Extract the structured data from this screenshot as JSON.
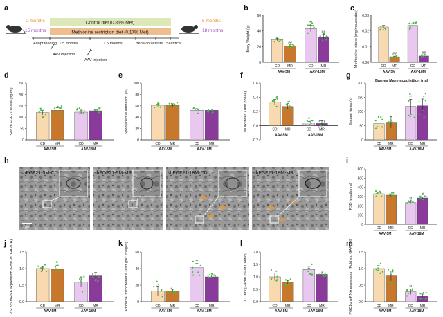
{
  "colors": {
    "cd5": "#f8d9b0",
    "mr5": "#c8782c",
    "cd18": "#e8c8ef",
    "mr18": "#8a3a9a",
    "dots": "#3fbf3f",
    "control_diet": "#dde8b8",
    "met_diet": "#f0be8e",
    "age5": "#ef8a2a",
    "age18": "#a04fc0"
  },
  "panel_letters": [
    "a",
    "b",
    "c",
    "d",
    "e",
    "f",
    "g",
    "h",
    "i",
    "j",
    "k",
    "l",
    "m"
  ],
  "schematic": {
    "age_left_top": "2 months",
    "age_left_bottom": "15 months",
    "control_bar": "Control diet (0.86% Met)",
    "met_bar": "Methionine restriction diet (0.17% Met)",
    "age_right_top": "5 months",
    "age_right_bottom": "18 months",
    "step1": "Adapt feeding",
    "step2": "1.5 months",
    "step3": "AAV injection",
    "step4": "1.5 months",
    "step5": "AAV injection",
    "step6": "Behavioral tests",
    "step7": "Sacrifice"
  },
  "micrographs": {
    "labels": [
      "shFGF21-5M-CD",
      "shFGF21-5M-MR",
      "shFGF21-18M-CD",
      "shFGF21-18M-MR"
    ],
    "scale_label": "1 μm"
  },
  "chart_data": [
    {
      "id": "b",
      "type": "bar",
      "ylabel": "Body Weight (g)",
      "ylim": [
        0,
        60
      ],
      "ticks": [
        "0",
        "20",
        "40",
        "60"
      ],
      "categories": [
        "CD",
        "MR",
        "CD",
        "MR"
      ],
      "groups": [
        "AAV-5M",
        "AAV-18M"
      ],
      "values": [
        29,
        21,
        43,
        32
      ],
      "errors": [
        1.5,
        1.2,
        4,
        3.5
      ],
      "annotations": [
        "",
        "##",
        "**",
        "##"
      ]
    },
    {
      "id": "c",
      "type": "bar",
      "ylabel": "Methionine intake (mg/mouse/day)",
      "ylim": [
        0,
        0.03
      ],
      "ticks": [
        "0.00",
        "0.01",
        "0.02",
        "0.03"
      ],
      "categories": [
        "CD",
        "MR",
        "CD",
        "MR"
      ],
      "groups": [
        "AAV-5M",
        "AAV-18M"
      ],
      "values": [
        0.0225,
        0.0035,
        0.0235,
        0.004
      ],
      "errors": [
        0.001,
        0.0004,
        0.0012,
        0.0005
      ],
      "annotations": [
        "",
        "##",
        "",
        "##"
      ]
    },
    {
      "id": "d",
      "type": "bar",
      "ylabel": "Serum FGF21 levels (pg/ml)",
      "ylim": [
        0,
        250
      ],
      "ticks": [
        "0",
        "50",
        "100",
        "150",
        "200",
        "250"
      ],
      "categories": [
        "CD",
        "MR",
        "CD",
        "MR"
      ],
      "groups": [
        "AAV-5M",
        "AAV-18M"
      ],
      "values": [
        120,
        130,
        122,
        128
      ],
      "errors": [
        10,
        12,
        9,
        8
      ],
      "annotations": [
        "",
        "",
        "",
        ""
      ]
    },
    {
      "id": "e",
      "type": "bar",
      "ylabel": "Spontaneous alteration (%)",
      "ylim": [
        0,
        100
      ],
      "ticks": [
        "0",
        "20",
        "40",
        "60",
        "80",
        "100"
      ],
      "categories": [
        "CD",
        "MR",
        "CD",
        "MR"
      ],
      "groups": [
        "AAV-5M",
        "AAV-18M"
      ],
      "values": [
        61,
        61,
        52,
        52
      ],
      "errors": [
        2,
        2.5,
        3,
        2.5
      ],
      "annotations": [
        "",
        "",
        "",
        ""
      ]
    },
    {
      "id": "f",
      "type": "bar",
      "ylabel": "NOR index (Test phase)",
      "ylim": [
        -0.2,
        0.6
      ],
      "ticks": [
        "-0.2",
        "0.0",
        "0.2",
        "0.4",
        "0.6"
      ],
      "categories": [
        "CD",
        "MR",
        "CD",
        "MR"
      ],
      "groups": [
        "AAV-5M",
        "AAV-18M"
      ],
      "values": [
        0.33,
        0.27,
        0.04,
        0.03
      ],
      "errors": [
        0.04,
        0.04,
        0.02,
        0.04
      ],
      "annotations": [
        "",
        "",
        "**",
        ""
      ]
    },
    {
      "id": "g",
      "type": "bar",
      "title": "Barnes Maze-acquisition trial",
      "ylabel": "Escape times (s)",
      "ylim": [
        0,
        200
      ],
      "ticks": [
        "0",
        "50",
        "100",
        "150",
        "200"
      ],
      "categories": [
        "CD",
        "MR",
        "CD",
        "MR"
      ],
      "groups": [
        "AAV-5M",
        "AAV-18M"
      ],
      "values": [
        57,
        62,
        118,
        120
      ],
      "errors": [
        12,
        20,
        25,
        24
      ],
      "annotations": [
        "",
        "",
        "**",
        ""
      ]
    },
    {
      "id": "i",
      "type": "bar",
      "ylabel": "PSD length(nm)",
      "ylim": [
        0,
        600
      ],
      "ticks": [
        "0",
        "100",
        "200",
        "300",
        "400",
        "500",
        "600"
      ],
      "categories": [
        "CD",
        "MR",
        "CD",
        "MR"
      ],
      "groups": [
        "AAV-5M",
        "AAV-18M"
      ],
      "values": [
        330,
        315,
        235,
        285
      ],
      "errors": [
        15,
        14,
        13,
        12
      ],
      "annotations": [
        "",
        "",
        "**",
        "#"
      ]
    },
    {
      "id": "j",
      "type": "bar",
      "ylabel": "PSD95 mRNA expression (Fold vs. GAPDH)",
      "ylim": [
        0,
        1.5
      ],
      "ticks": [
        "0.0",
        "0.5",
        "1.0",
        "1.5"
      ],
      "categories": [
        "CD",
        "MR",
        "CD",
        "MR"
      ],
      "groups": [
        "AAV-5M",
        "AAV-18M"
      ],
      "values": [
        1.0,
        0.98,
        0.6,
        0.78
      ],
      "errors": [
        0.06,
        0.12,
        0.15,
        0.1
      ],
      "annotations": [
        "",
        "",
        "",
        ""
      ]
    },
    {
      "id": "k",
      "type": "bar",
      "ylabel": "Abnormal mitochondria ratio (per images)",
      "ylim": [
        0,
        60
      ],
      "ticks": [
        "0",
        "20",
        "40",
        "60"
      ],
      "categories": [
        "CD",
        "MR",
        "CD",
        "MR"
      ],
      "groups": [
        "AAV-5M",
        "AAV-18M"
      ],
      "values": [
        13,
        13,
        41,
        30
      ],
      "errors": [
        6,
        2,
        5,
        2
      ],
      "annotations": [
        "",
        "",
        "**",
        ""
      ]
    },
    {
      "id": "l",
      "type": "bar",
      "ylabel": "COXIV/β-actin (% of Control)",
      "ylim": [
        0,
        2
      ],
      "ticks": [
        "0.0",
        "0.5",
        "1.0",
        "1.5",
        "2.0"
      ],
      "categories": [
        "CD",
        "MR",
        "CD",
        "MR"
      ],
      "groups": [
        "AAV-5M",
        "AAV-18M"
      ],
      "values": [
        1.0,
        0.78,
        1.3,
        1.1
      ],
      "errors": [
        0.15,
        0.07,
        0.12,
        0.06
      ],
      "annotations": [
        "",
        "",
        "",
        ""
      ]
    },
    {
      "id": "m",
      "type": "bar",
      "ylabel": "PGC1α mRNA expression (Fold vs. GAPDH)",
      "ylim": [
        0,
        1.5
      ],
      "ticks": [
        "0.0",
        "0.5",
        "1.0",
        "1.5"
      ],
      "categories": [
        "CD",
        "MR",
        "CD",
        "MR"
      ],
      "groups": [
        "AAV-5M",
        "AAV-18M"
      ],
      "values": [
        1.0,
        0.78,
        0.3,
        0.18
      ],
      "errors": [
        0.08,
        0.15,
        0.08,
        0.05
      ],
      "annotations": [
        "",
        "",
        "**",
        ""
      ]
    }
  ]
}
